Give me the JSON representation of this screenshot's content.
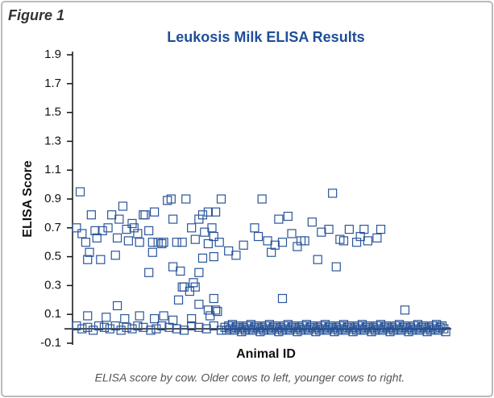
{
  "chart_data": {
    "type": "scatter",
    "figure_label": "Figure 1",
    "title": "Leukosis Milk ELISA Results",
    "y_label": "ELISA Score",
    "x_label": "Animal ID",
    "caption": "ELISA score by cow. Older cows to left, younger cows to right.",
    "color": "#2a5599",
    "marker": "square",
    "ylim": [
      -0.1,
      1.9
    ],
    "yticks": [
      -0.1,
      0.1,
      0.3,
      0.5,
      0.7,
      0.9,
      1.1,
      1.3,
      1.5,
      1.7,
      1.9
    ],
    "xlim": [
      -3,
      202
    ],
    "x": [
      2,
      0,
      3,
      5,
      6,
      7,
      8,
      10,
      11,
      13,
      14,
      17,
      19,
      21,
      22,
      23,
      25,
      27,
      28,
      30,
      31,
      33,
      34,
      36,
      37,
      39,
      41,
      42,
      44,
      46,
      47,
      49,
      51,
      52,
      54,
      57,
      59,
      62,
      64,
      66,
      68,
      69,
      71,
      73,
      74,
      75,
      78,
      39,
      41,
      52,
      56,
      58,
      61,
      63,
      66,
      68,
      71,
      74,
      77,
      82,
      86,
      90,
      96,
      98,
      100,
      103,
      105,
      107,
      109,
      111,
      114,
      116,
      119,
      121,
      123,
      127,
      130,
      132,
      136,
      138,
      140,
      142,
      144,
      147,
      151,
      153,
      155,
      157,
      162,
      164,
      55,
      57,
      64,
      66,
      74,
      71,
      76,
      111,
      6,
      16,
      22,
      26,
      34,
      42,
      47,
      52,
      62,
      72,
      75,
      177,
      0,
      3,
      6,
      9,
      12,
      15,
      18,
      21,
      24,
      27,
      30,
      33,
      36,
      40,
      43,
      46,
      50,
      54,
      58,
      62,
      66,
      70,
      74,
      78,
      80,
      81,
      82,
      83,
      84,
      85,
      86,
      87,
      88,
      89,
      90,
      91,
      92,
      93,
      94,
      95,
      96,
      97,
      98,
      99,
      100,
      101,
      102,
      103,
      104,
      105,
      106,
      107,
      108,
      109,
      110,
      111,
      112,
      113,
      114,
      115,
      116,
      117,
      118,
      119,
      120,
      121,
      122,
      123,
      124,
      125,
      126,
      127,
      128,
      129,
      130,
      131,
      132,
      133,
      134,
      135,
      136,
      137,
      138,
      139,
      140,
      141,
      142,
      143,
      144,
      145,
      146,
      147,
      148,
      149,
      150,
      151,
      152,
      153,
      154,
      155,
      156,
      157,
      158,
      159,
      160,
      161,
      162,
      163,
      164,
      165,
      166,
      167,
      168,
      169,
      170,
      171,
      172,
      173,
      174,
      175,
      176,
      177,
      178,
      179,
      180,
      181,
      182,
      183,
      184,
      185,
      186,
      187,
      188,
      189,
      190,
      191,
      192,
      193,
      194,
      195,
      196,
      197,
      198,
      199
    ],
    "values": [
      0.95,
      0.7,
      0.66,
      0.6,
      0.48,
      0.53,
      0.79,
      0.68,
      0.63,
      0.48,
      0.68,
      0.7,
      0.79,
      0.51,
      0.63,
      0.76,
      0.85,
      0.69,
      0.61,
      0.73,
      0.7,
      0.66,
      0.6,
      0.79,
      0.79,
      0.68,
      0.6,
      0.81,
      0.6,
      0.59,
      0.6,
      0.89,
      0.9,
      0.76,
      0.6,
      0.6,
      0.9,
      0.7,
      0.62,
      0.76,
      0.79,
      0.67,
      0.81,
      0.7,
      0.64,
      0.81,
      0.9,
      0.39,
      0.53,
      0.43,
      0.4,
      0.29,
      0.26,
      0.32,
      0.39,
      0.49,
      0.59,
      0.5,
      0.6,
      0.54,
      0.51,
      0.58,
      0.7,
      0.64,
      0.9,
      0.61,
      0.53,
      0.58,
      0.76,
      0.6,
      0.78,
      0.66,
      0.57,
      0.61,
      0.61,
      0.74,
      0.48,
      0.67,
      0.69,
      0.94,
      0.43,
      0.62,
      0.61,
      0.69,
      0.6,
      0.64,
      0.69,
      0.61,
      0.63,
      0.69,
      0.2,
      0.29,
      0.29,
      0.17,
      0.21,
      0.13,
      0.12,
      0.21,
      0.09,
      0.08,
      0.16,
      0.07,
      0.09,
      0.07,
      0.09,
      0.06,
      0.07,
      0.09,
      0.13,
      0.13,
      0.02,
      0,
      0.01,
      -0.01,
      0.02,
      0.01,
      0,
      0.02,
      -0.01,
      0.01,
      0,
      0.02,
      0.01,
      -0.01,
      0,
      0.02,
      0.01,
      0,
      -0.01,
      0.02,
      0.01,
      0,
      0.02,
      -0.01,
      0.01,
      -0.01,
      0.02,
      0,
      0.03,
      -0.01,
      0.01,
      0.02,
      0,
      -0.02,
      0.01,
      -0.01,
      0.02,
      0,
      0.03,
      -0.01,
      0.01,
      0.02,
      0,
      -0.02,
      0.01,
      -0.01,
      0.02,
      0,
      0.03,
      -0.01,
      0.01,
      0.02,
      0,
      -0.02,
      0.01,
      -0.01,
      0.02,
      0,
      0.03,
      -0.01,
      0.01,
      0.02,
      0,
      -0.02,
      0.01,
      -0.01,
      0.02,
      0,
      0.03,
      -0.01,
      0.01,
      0.02,
      0,
      -0.02,
      0.01,
      -0.01,
      0.02,
      0,
      0.03,
      -0.01,
      0.01,
      0.02,
      0,
      -0.02,
      0.01,
      -0.01,
      0.02,
      0,
      0.03,
      -0.01,
      0.01,
      0.02,
      0,
      -0.02,
      0.01,
      -0.01,
      0.02,
      0,
      0.03,
      -0.01,
      0.01,
      0.02,
      0,
      -0.02,
      0.01,
      -0.01,
      0.02,
      0,
      0.03,
      -0.01,
      0.01,
      0.02,
      0,
      -0.02,
      0.01,
      -0.01,
      0.02,
      0,
      0.03,
      -0.01,
      0.01,
      0.02,
      0,
      -0.02,
      0.01,
      -0.01,
      0.02,
      0,
      0.03,
      -0.01,
      0.01,
      0.02,
      0,
      -0.02,
      0.01,
      -0.01,
      0.02,
      0,
      0.03,
      -0.01,
      0.01,
      0.02,
      0,
      -0.02
    ]
  }
}
